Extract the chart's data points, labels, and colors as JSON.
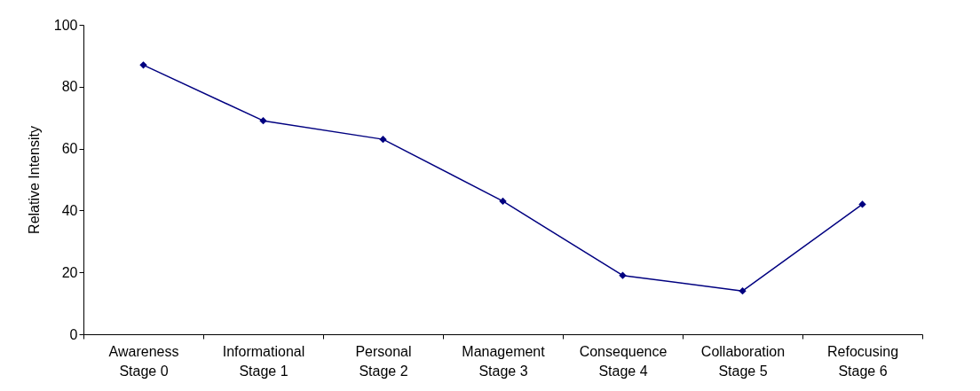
{
  "chart_data": {
    "type": "line",
    "ylabel": "Relative Intensity",
    "categories": [
      "Awareness\nStage 0",
      "Informational\nStage 1",
      "Personal\nStage 2",
      "Management\nStage 3",
      "Consequence\nStage 4",
      "Collaboration\nStage 5",
      "Refocusing\nStage 6"
    ],
    "series": [
      {
        "color": "#000080",
        "values": [
          87,
          69,
          63,
          43,
          19,
          14,
          42
        ]
      }
    ],
    "ylim": [
      0,
      100
    ],
    "yticks": [
      0,
      20,
      40,
      60,
      80,
      100
    ],
    "grid": false,
    "marker": "diamond",
    "line_style": "solid"
  }
}
